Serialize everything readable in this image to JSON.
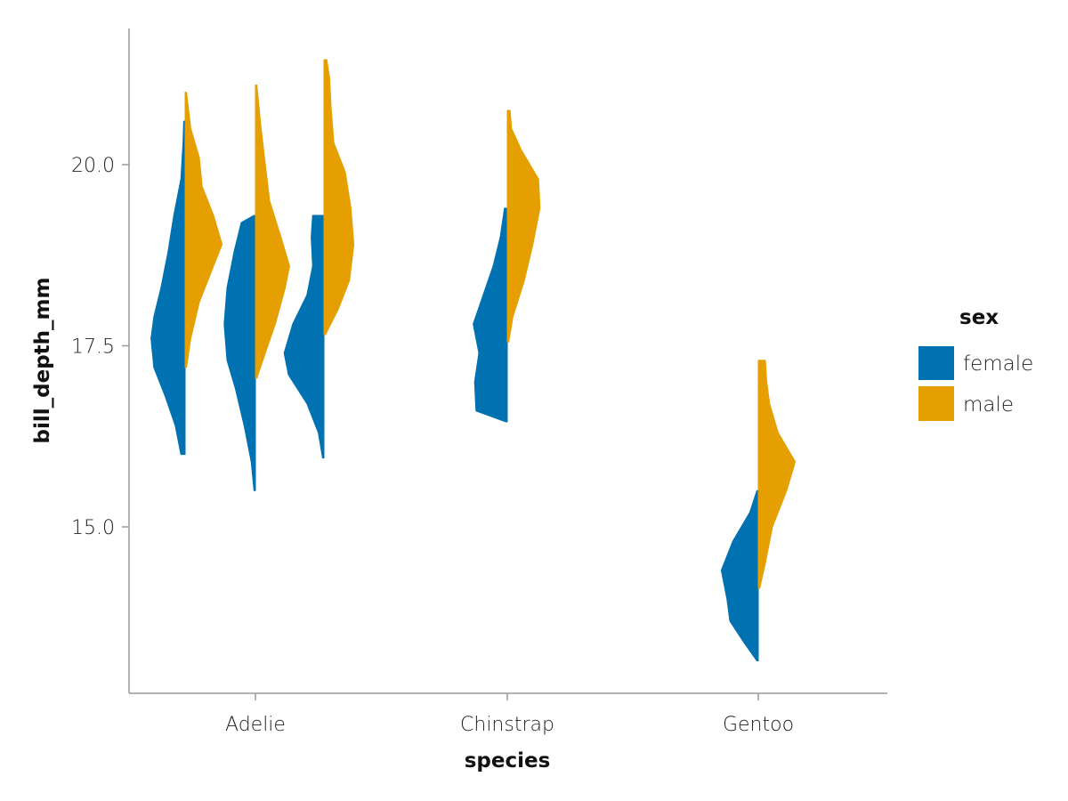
{
  "chart_data": {
    "type": "violin",
    "title": "",
    "xlabel": "species",
    "ylabel": "bill_depth_mm",
    "categories": [
      "Adelie",
      "Chinstrap",
      "Gentoo"
    ],
    "yticks": [
      "15.0",
      "17.5",
      "20.0"
    ],
    "ytick_values": [
      15.0,
      17.5,
      20.0
    ],
    "ylim": [
      12.8,
      21.95
    ],
    "grid": false,
    "legend": {
      "title": "sex",
      "position": "right",
      "entries": [
        {
          "label": "female",
          "color": "#0072b2"
        },
        {
          "label": "male",
          "color": "#e69f00"
        }
      ]
    },
    "series": [
      {
        "name": "female",
        "color": "#0072b2",
        "side": "left"
      },
      {
        "name": "male",
        "color": "#e69f00",
        "side": "right"
      }
    ],
    "violins": [
      {
        "category": "Adelie",
        "group": 1,
        "sex": "female",
        "profile": [
          [
            16.0,
            0.03
          ],
          [
            16.4,
            0.07
          ],
          [
            16.8,
            0.14
          ],
          [
            17.2,
            0.22
          ],
          [
            17.6,
            0.24
          ],
          [
            17.9,
            0.22
          ],
          [
            18.3,
            0.17
          ],
          [
            18.8,
            0.12
          ],
          [
            19.3,
            0.08
          ],
          [
            19.8,
            0.03
          ],
          [
            20.3,
            0.015
          ],
          [
            20.6,
            0.01
          ]
        ]
      },
      {
        "category": "Adelie",
        "group": 1,
        "sex": "male",
        "profile": [
          [
            17.2,
            0.01
          ],
          [
            17.6,
            0.04
          ],
          [
            18.1,
            0.1
          ],
          [
            18.5,
            0.18
          ],
          [
            18.9,
            0.26
          ],
          [
            19.3,
            0.2
          ],
          [
            19.7,
            0.12
          ],
          [
            20.1,
            0.1
          ],
          [
            20.5,
            0.04
          ],
          [
            21.0,
            0.01
          ]
        ]
      },
      {
        "category": "Adelie",
        "group": 2,
        "sex": "female",
        "profile": [
          [
            15.5,
            0.01
          ],
          [
            15.9,
            0.03
          ],
          [
            16.4,
            0.08
          ],
          [
            16.9,
            0.14
          ],
          [
            17.3,
            0.2
          ],
          [
            17.8,
            0.22
          ],
          [
            18.3,
            0.2
          ],
          [
            18.8,
            0.15
          ],
          [
            19.2,
            0.1
          ],
          [
            19.3,
            0.01
          ]
        ]
      },
      {
        "category": "Adelie",
        "group": 2,
        "sex": "male",
        "profile": [
          [
            17.05,
            0.01
          ],
          [
            17.4,
            0.07
          ],
          [
            17.8,
            0.14
          ],
          [
            18.3,
            0.21
          ],
          [
            18.6,
            0.24
          ],
          [
            19.0,
            0.18
          ],
          [
            19.5,
            0.1
          ],
          [
            20.0,
            0.07
          ],
          [
            20.5,
            0.04
          ],
          [
            21.0,
            0.015
          ],
          [
            21.1,
            0.01
          ]
        ]
      },
      {
        "category": "Adelie",
        "group": 3,
        "sex": "female",
        "profile": [
          [
            15.95,
            0.01
          ],
          [
            16.3,
            0.04
          ],
          [
            16.7,
            0.12
          ],
          [
            17.1,
            0.25
          ],
          [
            17.4,
            0.28
          ],
          [
            17.8,
            0.22
          ],
          [
            18.2,
            0.12
          ],
          [
            18.6,
            0.08
          ],
          [
            19.0,
            0.09
          ],
          [
            19.3,
            0.08
          ]
        ]
      },
      {
        "category": "Adelie",
        "group": 3,
        "sex": "male",
        "profile": [
          [
            17.65,
            0.01
          ],
          [
            18.0,
            0.1
          ],
          [
            18.4,
            0.18
          ],
          [
            18.9,
            0.21
          ],
          [
            19.4,
            0.19
          ],
          [
            19.9,
            0.15
          ],
          [
            20.3,
            0.07
          ],
          [
            20.8,
            0.05
          ],
          [
            21.2,
            0.04
          ],
          [
            21.45,
            0.02
          ]
        ]
      },
      {
        "category": "Chinstrap",
        "group": 1,
        "sex": "female",
        "profile": [
          [
            16.45,
            0.01
          ],
          [
            16.6,
            0.22
          ],
          [
            17.0,
            0.23
          ],
          [
            17.4,
            0.2
          ],
          [
            17.8,
            0.24
          ],
          [
            18.2,
            0.17
          ],
          [
            18.6,
            0.1
          ],
          [
            19.0,
            0.05
          ],
          [
            19.4,
            0.02
          ]
        ]
      },
      {
        "category": "Chinstrap",
        "group": 1,
        "sex": "male",
        "profile": [
          [
            17.55,
            0.01
          ],
          [
            17.9,
            0.04
          ],
          [
            18.4,
            0.12
          ],
          [
            18.9,
            0.18
          ],
          [
            19.4,
            0.23
          ],
          [
            19.8,
            0.22
          ],
          [
            20.2,
            0.1
          ],
          [
            20.5,
            0.03
          ],
          [
            20.75,
            0.02
          ]
        ]
      },
      {
        "category": "Gentoo",
        "group": 1,
        "sex": "female",
        "profile": [
          [
            13.15,
            0.01
          ],
          [
            13.4,
            0.1
          ],
          [
            13.7,
            0.2
          ],
          [
            14.0,
            0.22
          ],
          [
            14.4,
            0.26
          ],
          [
            14.8,
            0.18
          ],
          [
            15.2,
            0.06
          ],
          [
            15.5,
            0.01
          ]
        ]
      },
      {
        "category": "Gentoo",
        "group": 1,
        "sex": "male",
        "profile": [
          [
            14.15,
            0.01
          ],
          [
            14.5,
            0.05
          ],
          [
            15.0,
            0.1
          ],
          [
            15.5,
            0.2
          ],
          [
            15.9,
            0.26
          ],
          [
            16.3,
            0.14
          ],
          [
            16.7,
            0.08
          ],
          [
            17.0,
            0.06
          ],
          [
            17.3,
            0.05
          ]
        ]
      }
    ]
  }
}
